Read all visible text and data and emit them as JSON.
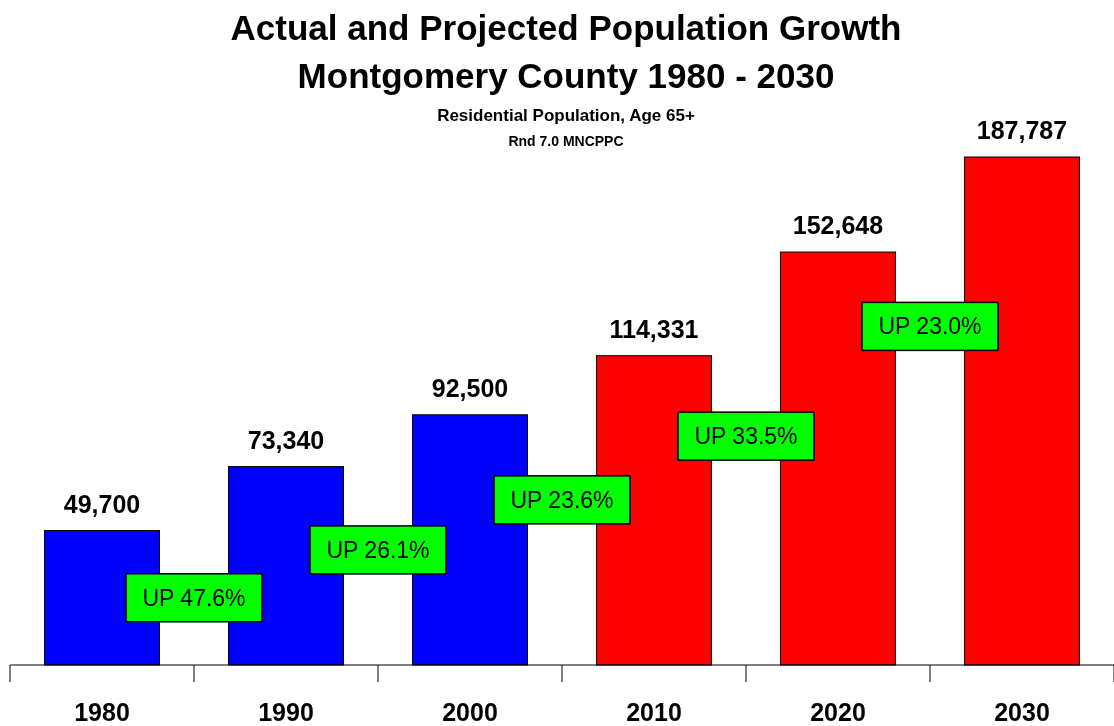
{
  "chart_data": {
    "type": "bar",
    "title": "Actual and Projected Population Growth\nMontgomery County 1980 - 2030",
    "subtitle": "Residential Population, Age 65+\nRnd 7.0  MNCPPC",
    "categories": [
      "1980",
      "1990",
      "2000",
      "2010",
      "2020",
      "2030"
    ],
    "values": [
      49700,
      73340,
      92500,
      114331,
      152648,
      187787
    ],
    "colors": [
      "#0000ff",
      "#0000ff",
      "#0000ff",
      "#ff0000",
      "#ff0000",
      "#ff0000"
    ],
    "value_labels": [
      "49,700",
      "73,340",
      "92,500",
      "114,331",
      "152,648",
      "187,787"
    ],
    "annotations": [
      "UP 47.6%",
      "UP 26.1%",
      "UP 23.6%",
      "UP 33.5%",
      "UP 23.0%"
    ],
    "grid": false
  }
}
